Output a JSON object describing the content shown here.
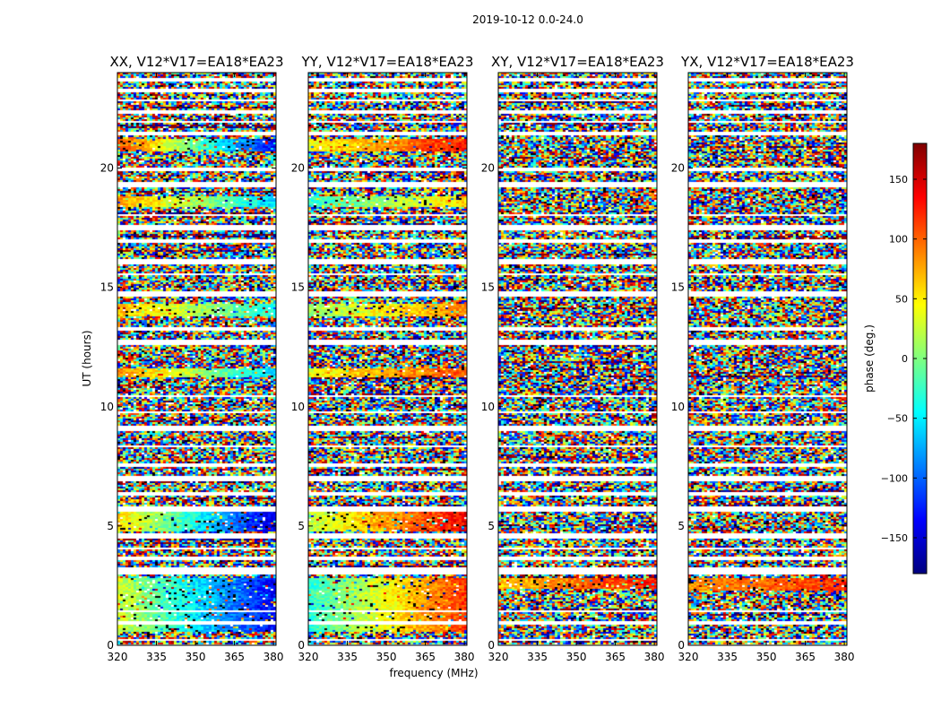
{
  "suptitle": "2019-10-12 0.0-24.0",
  "shared": {
    "xlabel": "frequency (MHz)",
    "ylabel": "UT (hours)",
    "x_ticks": [
      320,
      335,
      350,
      365,
      380
    ],
    "xlim": [
      320,
      381
    ],
    "y_ticks": [
      0,
      5,
      10,
      15,
      20
    ],
    "ylim": [
      0,
      24
    ]
  },
  "colorbar": {
    "label": "phase (deg.)",
    "range": [
      -180,
      180
    ],
    "ticks": [
      150,
      100,
      50,
      0,
      -50,
      -100,
      -150
    ],
    "tick_labels": [
      "150",
      "100",
      "50",
      "0",
      "−50",
      "−100",
      "−150"
    ],
    "colormap": [
      "#00007f",
      "#0000ff",
      "#007fff",
      "#00ffff",
      "#7fff7f",
      "#ffff00",
      "#ff7f00",
      "#ff0000",
      "#7f0000"
    ]
  },
  "chart_data": [
    {
      "type": "heatmap",
      "title": "XX, V12*V17=EA18*EA23",
      "polarization": "XX",
      "xlim": [
        320,
        381
      ],
      "ylim": [
        0,
        24
      ],
      "coherent_bands": [
        {
          "ut_range": [
            0.6,
            2.8
          ],
          "phase_low_freq": 30,
          "phase_high_freq": -140
        },
        {
          "ut_range": [
            4.8,
            5.6
          ],
          "phase_low_freq": 60,
          "phase_high_freq": -150
        },
        {
          "ut_range": [
            11.2,
            11.6
          ],
          "phase_low_freq": 90,
          "phase_high_freq": -60
        },
        {
          "ut_range": [
            13.8,
            14.3
          ],
          "phase_low_freq": 70,
          "phase_high_freq": -40
        },
        {
          "ut_range": [
            18.4,
            18.8
          ],
          "phase_low_freq": 80,
          "phase_high_freq": -60
        },
        {
          "ut_range": [
            20.7,
            21.2
          ],
          "phase_low_freq": 110,
          "phase_high_freq": -140
        }
      ]
    },
    {
      "type": "heatmap",
      "title": "YY, V12*V17=EA18*EA23",
      "polarization": "YY",
      "xlim": [
        320,
        381
      ],
      "ylim": [
        0,
        24
      ],
      "coherent_bands": [
        {
          "ut_range": [
            0.6,
            2.8
          ],
          "phase_low_freq": -30,
          "phase_high_freq": 120
        },
        {
          "ut_range": [
            4.8,
            5.6
          ],
          "phase_low_freq": 20,
          "phase_high_freq": 140
        },
        {
          "ut_range": [
            11.2,
            11.6
          ],
          "phase_low_freq": 40,
          "phase_high_freq": 110
        },
        {
          "ut_range": [
            13.8,
            14.3
          ],
          "phase_low_freq": 10,
          "phase_high_freq": 90
        },
        {
          "ut_range": [
            18.4,
            18.8
          ],
          "phase_low_freq": -30,
          "phase_high_freq": 60
        },
        {
          "ut_range": [
            20.7,
            21.2
          ],
          "phase_low_freq": 40,
          "phase_high_freq": 130
        }
      ]
    },
    {
      "type": "heatmap",
      "title": "XY, V12*V17=EA18*EA23",
      "polarization": "XY",
      "xlim": [
        320,
        381
      ],
      "ylim": [
        0,
        24
      ],
      "coherent_bands": [
        {
          "ut_range": [
            2.4,
            2.8
          ],
          "phase_low_freq": 60,
          "phase_high_freq": 130
        }
      ]
    },
    {
      "type": "heatmap",
      "title": "YX, V12*V17=EA18*EA23",
      "polarization": "YX",
      "xlim": [
        320,
        381
      ],
      "ylim": [
        0,
        24
      ],
      "coherent_bands": [
        {
          "ut_range": [
            2.3,
            2.8
          ],
          "phase_low_freq": 80,
          "phase_high_freq": 120
        }
      ]
    }
  ],
  "flagged_ut_intervals": [
    [
      0.2,
      0.3
    ],
    [
      0.9,
      1.0
    ],
    [
      1.4,
      1.5
    ],
    [
      3.0,
      3.3
    ],
    [
      3.6,
      3.7
    ],
    [
      4.0,
      4.1
    ],
    [
      4.5,
      4.7
    ],
    [
      5.6,
      5.8
    ],
    [
      6.3,
      6.4
    ],
    [
      6.9,
      7.1
    ],
    [
      7.5,
      7.6
    ],
    [
      8.3,
      8.4
    ],
    [
      9.0,
      9.2
    ],
    [
      9.7,
      9.8
    ],
    [
      10.4,
      10.5
    ],
    [
      12.6,
      12.8
    ],
    [
      13.2,
      13.3
    ],
    [
      14.6,
      14.8
    ],
    [
      15.5,
      15.6
    ],
    [
      16.0,
      16.2
    ],
    [
      16.9,
      17.0
    ],
    [
      17.4,
      17.6
    ],
    [
      18.0,
      18.1
    ],
    [
      19.2,
      19.4
    ],
    [
      19.9,
      20.0
    ],
    [
      21.4,
      21.5
    ],
    [
      21.9,
      22.0
    ],
    [
      22.3,
      22.4
    ],
    [
      22.8,
      22.9
    ],
    [
      23.2,
      23.3
    ],
    [
      23.6,
      23.8
    ]
  ]
}
